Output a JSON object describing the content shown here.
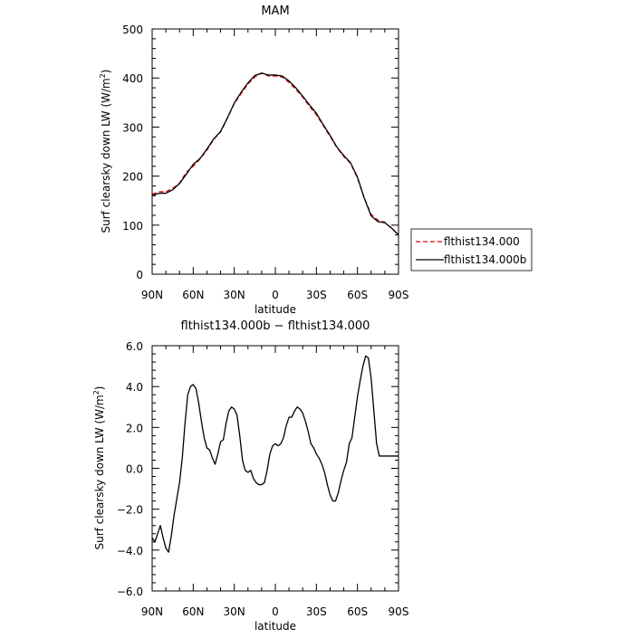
{
  "chart_data": [
    {
      "type": "line",
      "title": "MAM",
      "xlabel": "latitude",
      "ylabel": "Surf clearsky down LW (W/m",
      "ylabel_sup": "2",
      "ylabel_close": ")",
      "xlim": [
        -90,
        90
      ],
      "ylim": [
        0,
        500
      ],
      "xticks": [
        -90,
        -60,
        -30,
        0,
        30,
        60,
        90
      ],
      "xticklabels": [
        "90N",
        "60N",
        "30N",
        "0",
        "30S",
        "60S",
        "90S"
      ],
      "yticks": [
        0,
        100,
        200,
        300,
        400,
        500
      ],
      "yticklabels": [
        "0",
        "100",
        "200",
        "300",
        "400",
        "500"
      ],
      "legend_position": "right",
      "series": [
        {
          "name": "flthist134.000",
          "color": "#e00000",
          "dash": "dashed",
          "x": [
            -90,
            -85,
            -80,
            -75,
            -70,
            -65,
            -60,
            -55,
            -50,
            -45,
            -40,
            -35,
            -30,
            -25,
            -20,
            -15,
            -10,
            -5,
            0,
            5,
            10,
            15,
            20,
            25,
            30,
            35,
            40,
            45,
            50,
            55,
            60,
            65,
            70,
            75,
            80,
            85,
            90
          ],
          "y": [
            163,
            168,
            168,
            175,
            186,
            208,
            220,
            235,
            253,
            275,
            290,
            318,
            348,
            368,
            388,
            402,
            410,
            404,
            404,
            402,
            391,
            377,
            361,
            342,
            325,
            303,
            281,
            258,
            240,
            226,
            196,
            155,
            122,
            110,
            106,
            93,
            80
          ]
        },
        {
          "name": "flthist134.000b",
          "color": "#000000",
          "dash": "solid",
          "x": [
            -90,
            -85,
            -80,
            -75,
            -70,
            -65,
            -60,
            -55,
            -50,
            -45,
            -40,
            -35,
            -30,
            -25,
            -20,
            -15,
            -10,
            -5,
            0,
            5,
            10,
            15,
            20,
            25,
            30,
            35,
            40,
            45,
            50,
            55,
            60,
            65,
            70,
            75,
            80,
            85,
            90
          ],
          "y": [
            161,
            165,
            165,
            172,
            185,
            204,
            224,
            236,
            255,
            276,
            291,
            319,
            349,
            371,
            390,
            405,
            410,
            406,
            406,
            404,
            394,
            380,
            363,
            345,
            328,
            305,
            283,
            259,
            242,
            227,
            198,
            155,
            119,
            107,
            105,
            94,
            80
          ]
        }
      ]
    },
    {
      "type": "line",
      "title": "flthist134.000b − flthist134.000",
      "xlabel": "latitude",
      "ylabel": "Surf clearsky down LW (W/m",
      "ylabel_sup": "2",
      "ylabel_close": ")",
      "xlim": [
        -90,
        90
      ],
      "ylim": [
        -6,
        6
      ],
      "xticks": [
        -90,
        -60,
        -30,
        0,
        30,
        60,
        90
      ],
      "xticklabels": [
        "90N",
        "60N",
        "30N",
        "0",
        "30S",
        "60S",
        "90S"
      ],
      "yticks": [
        -6,
        -4,
        -2,
        0,
        2,
        4,
        6
      ],
      "yticklabels": [
        "−6.0",
        "−4.0",
        "−2.0",
        "0.0",
        "2.0",
        "4.0",
        "6.0"
      ],
      "series": [
        {
          "color": "#000000",
          "dash": "solid",
          "x": [
            -90,
            -88,
            -86,
            -84,
            -82,
            -80,
            -78,
            -76,
            -74,
            -72,
            -70,
            -68,
            -66,
            -64,
            -62,
            -60,
            -58,
            -56,
            -54,
            -52,
            -50,
            -48,
            -46,
            -44,
            -42,
            -40,
            -38,
            -36,
            -34,
            -32,
            -30,
            -28,
            -26,
            -24,
            -22,
            -20,
            -18,
            -16,
            -14,
            -12,
            -10,
            -8,
            -6,
            -4,
            -2,
            0,
            2,
            4,
            6,
            8,
            10,
            12,
            14,
            16,
            18,
            20,
            22,
            24,
            26,
            28,
            30,
            32,
            34,
            36,
            38,
            40,
            42,
            44,
            46,
            48,
            50,
            52,
            54,
            56,
            58,
            60,
            62,
            64,
            66,
            68,
            70,
            72,
            74,
            76,
            78,
            80,
            82,
            84,
            86,
            88,
            90
          ],
          "y": [
            -3.4,
            -3.6,
            -3.2,
            -2.8,
            -3.4,
            -3.9,
            -4.1,
            -3.3,
            -2.3,
            -1.5,
            -0.7,
            0.5,
            2.2,
            3.6,
            4.0,
            4.1,
            3.9,
            3.2,
            2.3,
            1.5,
            1.0,
            0.9,
            0.5,
            0.2,
            0.7,
            1.3,
            1.4,
            2.2,
            2.8,
            3.0,
            2.9,
            2.6,
            1.6,
            0.4,
            -0.1,
            -0.2,
            -0.1,
            -0.5,
            -0.7,
            -0.8,
            -0.8,
            -0.7,
            -0.1,
            0.7,
            1.1,
            1.2,
            1.1,
            1.2,
            1.5,
            2.1,
            2.5,
            2.5,
            2.8,
            3.0,
            2.9,
            2.7,
            2.3,
            1.8,
            1.2,
            1.0,
            0.7,
            0.5,
            0.2,
            -0.2,
            -0.8,
            -1.3,
            -1.6,
            -1.6,
            -1.2,
            -0.6,
            -0.1,
            0.3,
            1.2,
            1.5,
            2.5,
            3.5,
            4.3,
            5.0,
            5.5,
            5.4,
            4.4,
            2.8,
            1.2,
            0.6,
            0.6,
            0.6,
            0.6,
            0.6,
            0.6,
            0.6,
            0.6
          ]
        }
      ]
    }
  ]
}
